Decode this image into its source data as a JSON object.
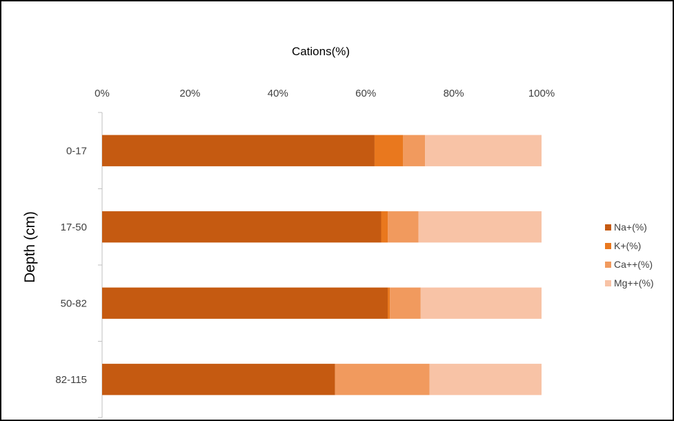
{
  "chart_data": {
    "type": "bar",
    "orientation": "horizontal",
    "stacked": "percent",
    "title": "Cations(%)",
    "xlabel": "",
    "ylabel": "Depth (cm)",
    "xlim": [
      0,
      100
    ],
    "x_ticks": [
      "0%",
      "20%",
      "40%",
      "60%",
      "80%",
      "100%"
    ],
    "x_axis_position": "top",
    "grid": false,
    "legend_position": "right",
    "categories": [
      "0-17",
      "17-50",
      "50-82",
      "82-115"
    ],
    "series": [
      {
        "name": "Na+(%)",
        "color": "#C55A11",
        "values": [
          62,
          63.5,
          65,
          53
        ]
      },
      {
        "name": "K+(%)",
        "color": "#E9781E",
        "values": [
          6.5,
          1.5,
          0.5,
          0
        ]
      },
      {
        "name": "Ca++(%)",
        "color": "#F19A5E",
        "values": [
          5,
          7,
          7,
          21.5
        ]
      },
      {
        "name": "Mg++(%)",
        "color": "#F8C3A6",
        "values": [
          26.5,
          28,
          27.5,
          25.5
        ]
      }
    ]
  }
}
